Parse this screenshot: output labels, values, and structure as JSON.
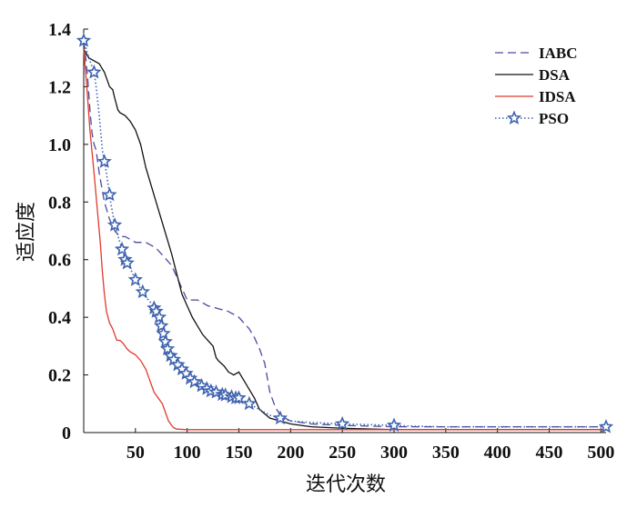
{
  "chart_data": {
    "type": "line",
    "title": "",
    "xlabel": "迭代次数",
    "ylabel": "适应度",
    "xlim": [
      0,
      505
    ],
    "ylim": [
      0,
      1.4
    ],
    "x_ticks": [
      50,
      100,
      150,
      200,
      250,
      300,
      350,
      400,
      450,
      500
    ],
    "y_ticks": [
      0,
      0.2,
      0.4,
      0.6,
      0.8,
      1.0,
      1.2,
      1.4
    ],
    "x_tick_labels": [
      "50",
      "100",
      "150",
      "200",
      "250",
      "300",
      "350",
      "400",
      "450",
      "500"
    ],
    "y_tick_labels": [
      "0",
      "0.2",
      "0.4",
      "0.6",
      "0.8",
      "1.0",
      "1.2",
      "1.4"
    ],
    "grid": false,
    "legend_position": "top-right",
    "series": [
      {
        "name": "IABC",
        "color": "#4a4a9e",
        "style": "dashed",
        "marker": "none",
        "x": [
          0,
          2,
          4,
          6,
          8,
          10,
          12,
          15,
          20,
          25,
          30,
          35,
          40,
          50,
          60,
          70,
          80,
          85,
          90,
          95,
          100,
          110,
          120,
          130,
          140,
          150,
          160,
          165,
          170,
          175,
          180,
          185,
          190,
          200,
          220,
          250,
          300,
          350,
          400,
          450,
          505
        ],
        "y": [
          1.36,
          1.3,
          1.22,
          1.12,
          1.04,
          1.0,
          0.98,
          0.9,
          0.8,
          0.74,
          0.7,
          0.68,
          0.68,
          0.66,
          0.66,
          0.64,
          0.6,
          0.58,
          0.54,
          0.5,
          0.46,
          0.46,
          0.44,
          0.43,
          0.42,
          0.4,
          0.36,
          0.33,
          0.29,
          0.24,
          0.14,
          0.09,
          0.06,
          0.04,
          0.03,
          0.025,
          0.02,
          0.02,
          0.02,
          0.02,
          0.02
        ]
      },
      {
        "name": "DSA",
        "color": "#111111",
        "style": "solid",
        "marker": "none",
        "x": [
          0,
          5,
          10,
          15,
          20,
          25,
          28,
          30,
          33,
          35,
          40,
          45,
          50,
          55,
          60,
          65,
          70,
          75,
          80,
          85,
          90,
          95,
          100,
          105,
          110,
          115,
          120,
          125,
          128,
          130,
          133,
          136,
          140,
          145,
          150,
          155,
          160,
          165,
          170,
          180,
          190,
          200,
          220,
          250,
          300,
          350,
          400,
          450,
          505
        ],
        "y": [
          1.33,
          1.3,
          1.29,
          1.28,
          1.25,
          1.2,
          1.19,
          1.16,
          1.12,
          1.11,
          1.1,
          1.08,
          1.05,
          1.0,
          0.92,
          0.86,
          0.8,
          0.74,
          0.68,
          0.62,
          0.55,
          0.48,
          0.44,
          0.4,
          0.37,
          0.34,
          0.32,
          0.3,
          0.26,
          0.25,
          0.24,
          0.23,
          0.21,
          0.2,
          0.21,
          0.18,
          0.15,
          0.12,
          0.08,
          0.05,
          0.04,
          0.03,
          0.02,
          0.015,
          0.01,
          0.01,
          0.01,
          0.01,
          0.01
        ]
      },
      {
        "name": "IDSA",
        "color": "#e03a2e",
        "style": "solid",
        "marker": "none",
        "x": [
          0,
          3,
          6,
          10,
          13,
          16,
          18,
          20,
          22,
          25,
          28,
          30,
          32,
          35,
          38,
          42,
          45,
          50,
          55,
          60,
          62,
          64,
          66,
          68,
          70,
          72,
          74,
          76,
          78,
          80,
          82,
          84,
          86,
          88,
          90,
          100,
          120,
          150,
          200,
          250,
          300,
          350,
          400,
          450,
          505
        ],
        "y": [
          1.33,
          1.2,
          1.05,
          0.9,
          0.78,
          0.66,
          0.56,
          0.48,
          0.42,
          0.38,
          0.36,
          0.34,
          0.32,
          0.32,
          0.31,
          0.29,
          0.28,
          0.27,
          0.25,
          0.22,
          0.2,
          0.18,
          0.16,
          0.14,
          0.13,
          0.12,
          0.11,
          0.1,
          0.08,
          0.06,
          0.04,
          0.03,
          0.02,
          0.015,
          0.012,
          0.01,
          0.01,
          0.01,
          0.01,
          0.01,
          0.01,
          0.01,
          0.01,
          0.01,
          0.01
        ]
      },
      {
        "name": "PSO",
        "color": "#3f63b0",
        "style": "dotted",
        "marker": "star",
        "x": [
          0,
          5,
          10,
          12,
          15,
          18,
          22,
          26,
          30,
          35,
          40,
          45,
          50,
          55,
          60,
          65,
          70,
          73,
          75,
          78,
          80,
          82,
          85,
          88,
          90,
          92,
          95,
          98,
          100,
          105,
          110,
          115,
          120,
          125,
          130,
          135,
          140,
          145,
          150,
          155,
          160,
          170,
          180,
          190,
          200,
          220,
          250,
          280,
          300,
          320,
          350,
          400,
          450,
          505
        ],
        "y": [
          1.36,
          1.3,
          1.25,
          1.2,
          1.1,
          0.98,
          0.9,
          0.8,
          0.72,
          0.66,
          0.6,
          0.57,
          0.53,
          0.5,
          0.47,
          0.45,
          0.42,
          0.4,
          0.37,
          0.33,
          0.3,
          0.28,
          0.26,
          0.25,
          0.24,
          0.23,
          0.22,
          0.21,
          0.2,
          0.18,
          0.17,
          0.16,
          0.15,
          0.14,
          0.14,
          0.13,
          0.13,
          0.12,
          0.12,
          0.11,
          0.1,
          0.08,
          0.06,
          0.05,
          0.04,
          0.035,
          0.03,
          0.027,
          0.025,
          0.022,
          0.02,
          0.02,
          0.02,
          0.02
        ],
        "marker_x": [
          0,
          10,
          20,
          25,
          30,
          37,
          40,
          42,
          50,
          57,
          68,
          70,
          73,
          75,
          77,
          79,
          81,
          84,
          87,
          91,
          95,
          99,
          103,
          107,
          114,
          119,
          123,
          128,
          134,
          137,
          143,
          147,
          150,
          160,
          190,
          250,
          300,
          505
        ]
      }
    ]
  }
}
